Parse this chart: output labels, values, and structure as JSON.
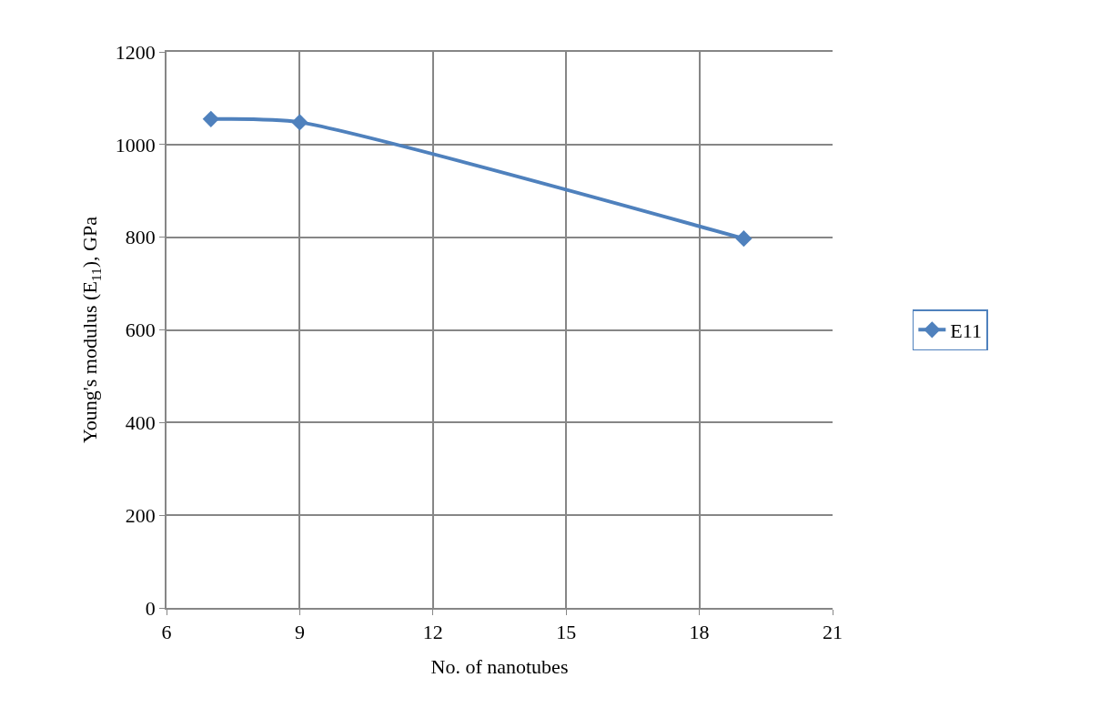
{
  "chart_data": {
    "type": "line",
    "xlabel": "No. of nanotubes",
    "ylabel": "Young's modulus (E$_{11}$), GPa",
    "x": [
      7,
      9,
      19
    ],
    "series": [
      {
        "name": "E11",
        "color": "#4f81bd",
        "values": [
          1055,
          1048,
          797
        ]
      }
    ],
    "xlim": [
      6,
      21
    ],
    "xticks": [
      6,
      9,
      12,
      15,
      18,
      21
    ],
    "ylim": [
      0,
      1200
    ],
    "yticks": [
      0,
      200,
      400,
      600,
      800,
      1000,
      1200
    ],
    "grid": true,
    "legend": "right",
    "marker": "diamond",
    "line_style": "solid"
  }
}
